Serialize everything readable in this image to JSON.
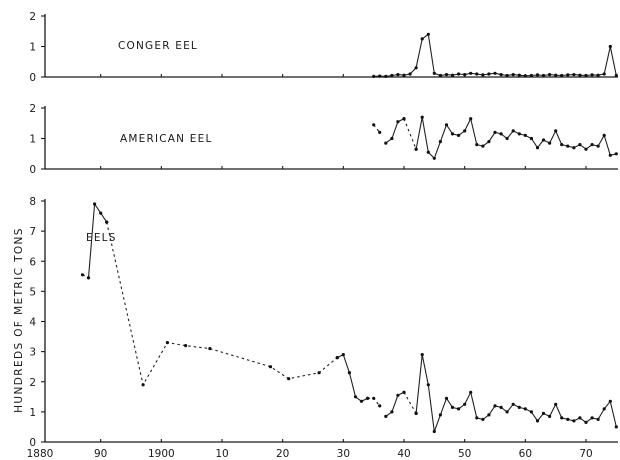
{
  "chart_data": [
    {
      "type": "line",
      "panel": "top",
      "annotation": "CONGER EEL",
      "ylim": [
        0,
        2
      ],
      "yticks": [
        0,
        1,
        2
      ],
      "xlim": [
        1880,
        1975
      ],
      "series": [
        {
          "segments": [
            {
              "style": "solid",
              "points": [
                [
                  1935,
                  0.02
                ],
                [
                  1936,
                  0.03
                ],
                [
                  1937,
                  0.02
                ],
                [
                  1938,
                  0.05
                ],
                [
                  1939,
                  0.08
                ],
                [
                  1940,
                  0.06
                ],
                [
                  1941,
                  0.1
                ],
                [
                  1942,
                  0.3
                ],
                [
                  1943,
                  1.25
                ],
                [
                  1944,
                  1.4
                ],
                [
                  1945,
                  0.12
                ],
                [
                  1946,
                  0.05
                ],
                [
                  1947,
                  0.08
                ],
                [
                  1948,
                  0.06
                ],
                [
                  1949,
                  0.1
                ],
                [
                  1950,
                  0.08
                ],
                [
                  1951,
                  0.12
                ],
                [
                  1952,
                  0.1
                ],
                [
                  1953,
                  0.07
                ],
                [
                  1954,
                  0.1
                ],
                [
                  1955,
                  0.12
                ],
                [
                  1956,
                  0.08
                ],
                [
                  1957,
                  0.05
                ],
                [
                  1958,
                  0.08
                ],
                [
                  1959,
                  0.06
                ],
                [
                  1960,
                  0.04
                ],
                [
                  1961,
                  0.05
                ],
                [
                  1962,
                  0.07
                ],
                [
                  1963,
                  0.05
                ],
                [
                  1964,
                  0.08
                ],
                [
                  1965,
                  0.06
                ],
                [
                  1966,
                  0.05
                ],
                [
                  1967,
                  0.07
                ],
                [
                  1968,
                  0.08
                ],
                [
                  1969,
                  0.06
                ],
                [
                  1970,
                  0.05
                ],
                [
                  1971,
                  0.07
                ],
                [
                  1972,
                  0.06
                ],
                [
                  1973,
                  0.1
                ],
                [
                  1974,
                  1.0
                ],
                [
                  1975,
                  0.05
                ]
              ]
            }
          ]
        }
      ]
    },
    {
      "type": "line",
      "panel": "middle",
      "annotation": "AMERICAN EEL",
      "ylim": [
        0,
        2
      ],
      "yticks": [
        0,
        1,
        2
      ],
      "xlim": [
        1880,
        1975
      ],
      "series": [
        {
          "segments": [
            {
              "style": "dashed",
              "points": [
                [
                  1935,
                  1.45
                ],
                [
                  1936,
                  1.2
                ]
              ]
            },
            {
              "style": "solid",
              "points": [
                [
                  1937,
                  0.85
                ],
                [
                  1938,
                  1.0
                ],
                [
                  1939,
                  1.55
                ],
                [
                  1940,
                  1.65
                ]
              ]
            },
            {
              "style": "dashed",
              "points": [
                [
                  1940,
                  1.65
                ],
                [
                  1942,
                  0.65
                ]
              ]
            },
            {
              "style": "solid",
              "points": [
                [
                  1942,
                  0.65
                ],
                [
                  1943,
                  1.7
                ],
                [
                  1944,
                  0.55
                ],
                [
                  1945,
                  0.35
                ],
                [
                  1946,
                  0.9
                ],
                [
                  1947,
                  1.45
                ],
                [
                  1948,
                  1.15
                ],
                [
                  1949,
                  1.1
                ],
                [
                  1950,
                  1.25
                ],
                [
                  1951,
                  1.65
                ],
                [
                  1952,
                  0.8
                ],
                [
                  1953,
                  0.75
                ],
                [
                  1954,
                  0.9
                ],
                [
                  1955,
                  1.2
                ],
                [
                  1956,
                  1.15
                ],
                [
                  1957,
                  1.0
                ],
                [
                  1958,
                  1.25
                ],
                [
                  1959,
                  1.15
                ],
                [
                  1960,
                  1.1
                ],
                [
                  1961,
                  1.0
                ],
                [
                  1962,
                  0.7
                ],
                [
                  1963,
                  0.95
                ],
                [
                  1964,
                  0.85
                ],
                [
                  1965,
                  1.25
                ],
                [
                  1966,
                  0.8
                ],
                [
                  1967,
                  0.75
                ],
                [
                  1968,
                  0.7
                ],
                [
                  1969,
                  0.8
                ],
                [
                  1970,
                  0.65
                ],
                [
                  1971,
                  0.8
                ],
                [
                  1972,
                  0.75
                ],
                [
                  1973,
                  1.1
                ],
                [
                  1974,
                  0.45
                ],
                [
                  1975,
                  0.5
                ]
              ]
            }
          ]
        }
      ]
    },
    {
      "type": "line",
      "panel": "bottom",
      "annotation": "EELS",
      "ylim": [
        0,
        8
      ],
      "yticks": [
        0,
        1,
        2,
        3,
        4,
        5,
        6,
        7,
        8
      ],
      "xlim": [
        1880,
        1975
      ],
      "xticks": [
        1880,
        1890,
        1900,
        1910,
        1920,
        1930,
        1940,
        1950,
        1960,
        1970
      ],
      "xticklabels": [
        "1880",
        "90",
        "1900",
        "10",
        "20",
        "30",
        "40",
        "50",
        "60",
        "70"
      ],
      "series": [
        {
          "segments": [
            {
              "style": "dashed",
              "points": [
                [
                  1887,
                  5.55
                ],
                [
                  1888,
                  5.45
                ]
              ]
            },
            {
              "style": "solid",
              "points": [
                [
                  1888,
                  5.45
                ],
                [
                  1889,
                  7.9
                ],
                [
                  1890,
                  7.6
                ],
                [
                  1891,
                  7.3
                ]
              ]
            },
            {
              "style": "dashed",
              "points": [
                [
                  1891,
                  7.3
                ],
                [
                  1897,
                  1.9
                ],
                [
                  1901,
                  3.3
                ],
                [
                  1904,
                  3.2
                ],
                [
                  1908,
                  3.1
                ],
                [
                  1918,
                  2.5
                ],
                [
                  1921,
                  2.1
                ],
                [
                  1926,
                  2.3
                ],
                [
                  1929,
                  2.8
                ]
              ]
            },
            {
              "style": "solid",
              "points": [
                [
                  1929,
                  2.8
                ],
                [
                  1930,
                  2.9
                ],
                [
                  1931,
                  2.3
                ],
                [
                  1932,
                  1.5
                ],
                [
                  1933,
                  1.35
                ],
                [
                  1934,
                  1.45
                ]
              ]
            },
            {
              "style": "dashed",
              "points": [
                [
                  1934,
                  1.45
                ],
                [
                  1935,
                  1.45
                ],
                [
                  1936,
                  1.2
                ]
              ]
            },
            {
              "style": "solid",
              "points": [
                [
                  1937,
                  0.85
                ],
                [
                  1938,
                  1.0
                ],
                [
                  1939,
                  1.55
                ],
                [
                  1940,
                  1.65
                ]
              ]
            },
            {
              "style": "dashed",
              "points": [
                [
                  1940,
                  1.65
                ],
                [
                  1942,
                  0.95
                ]
              ]
            },
            {
              "style": "solid",
              "points": [
                [
                  1942,
                  0.95
                ],
                [
                  1943,
                  2.9
                ],
                [
                  1944,
                  1.9
                ],
                [
                  1945,
                  0.35
                ],
                [
                  1946,
                  0.9
                ],
                [
                  1947,
                  1.45
                ],
                [
                  1948,
                  1.15
                ],
                [
                  1949,
                  1.1
                ],
                [
                  1950,
                  1.25
                ],
                [
                  1951,
                  1.65
                ],
                [
                  1952,
                  0.8
                ],
                [
                  1953,
                  0.75
                ],
                [
                  1954,
                  0.9
                ],
                [
                  1955,
                  1.2
                ],
                [
                  1956,
                  1.15
                ],
                [
                  1957,
                  1.0
                ],
                [
                  1958,
                  1.25
                ],
                [
                  1959,
                  1.15
                ],
                [
                  1960,
                  1.1
                ],
                [
                  1961,
                  1.0
                ],
                [
                  1962,
                  0.7
                ],
                [
                  1963,
                  0.95
                ],
                [
                  1964,
                  0.85
                ],
                [
                  1965,
                  1.25
                ],
                [
                  1966,
                  0.8
                ],
                [
                  1967,
                  0.75
                ],
                [
                  1968,
                  0.7
                ],
                [
                  1969,
                  0.8
                ],
                [
                  1970,
                  0.65
                ],
                [
                  1971,
                  0.8
                ],
                [
                  1972,
                  0.75
                ],
                [
                  1973,
                  1.1
                ],
                [
                  1974,
                  1.35
                ],
                [
                  1975,
                  0.5
                ]
              ]
            }
          ]
        }
      ]
    }
  ],
  "ylabel": "HUNDREDS OF METRIC TONS"
}
